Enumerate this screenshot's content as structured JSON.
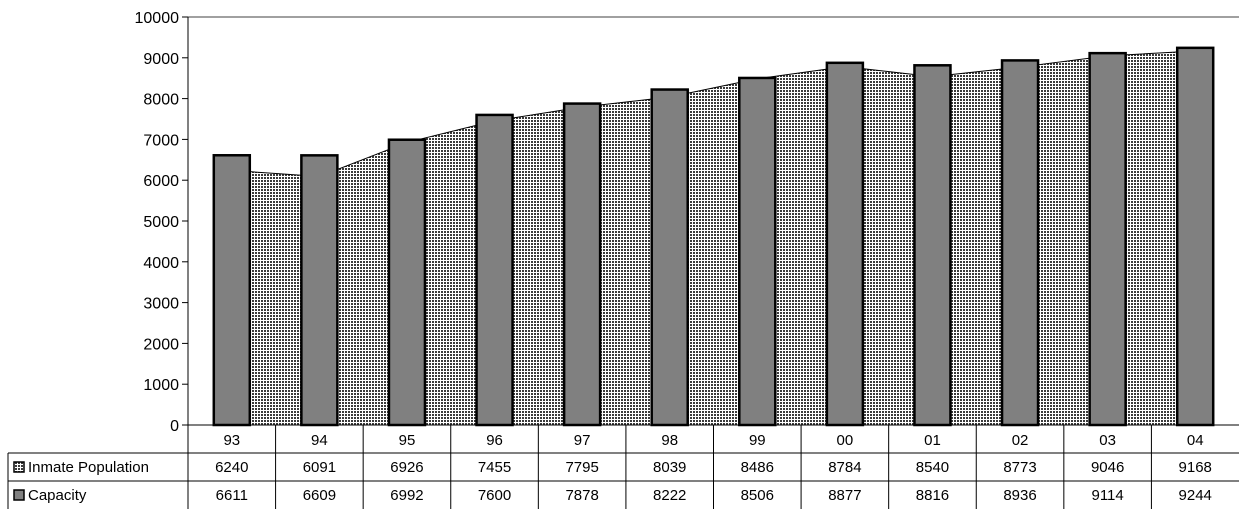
{
  "chart_data": {
    "type": "bar",
    "categories": [
      "93",
      "94",
      "95",
      "96",
      "97",
      "98",
      "99",
      "00",
      "01",
      "02",
      "03",
      "04"
    ],
    "series": [
      {
        "name": "Inmate Population",
        "chart_type": "area",
        "fill": "dotted-gray",
        "values": [
          6240,
          6091,
          6926,
          7455,
          7795,
          8039,
          8486,
          8784,
          8540,
          8773,
          9046,
          9168
        ]
      },
      {
        "name": "Capacity",
        "chart_type": "bar",
        "color": "#808080",
        "values": [
          6611,
          6609,
          6992,
          7600,
          7878,
          8222,
          8506,
          8877,
          8816,
          8936,
          9114,
          9244
        ]
      }
    ],
    "ylim": [
      0,
      10000
    ],
    "yticks": [
      0,
      1000,
      2000,
      3000,
      4000,
      5000,
      6000,
      7000,
      8000,
      9000,
      10000
    ],
    "legend_placement": "data-table-left",
    "grid": false,
    "data_table": true
  }
}
